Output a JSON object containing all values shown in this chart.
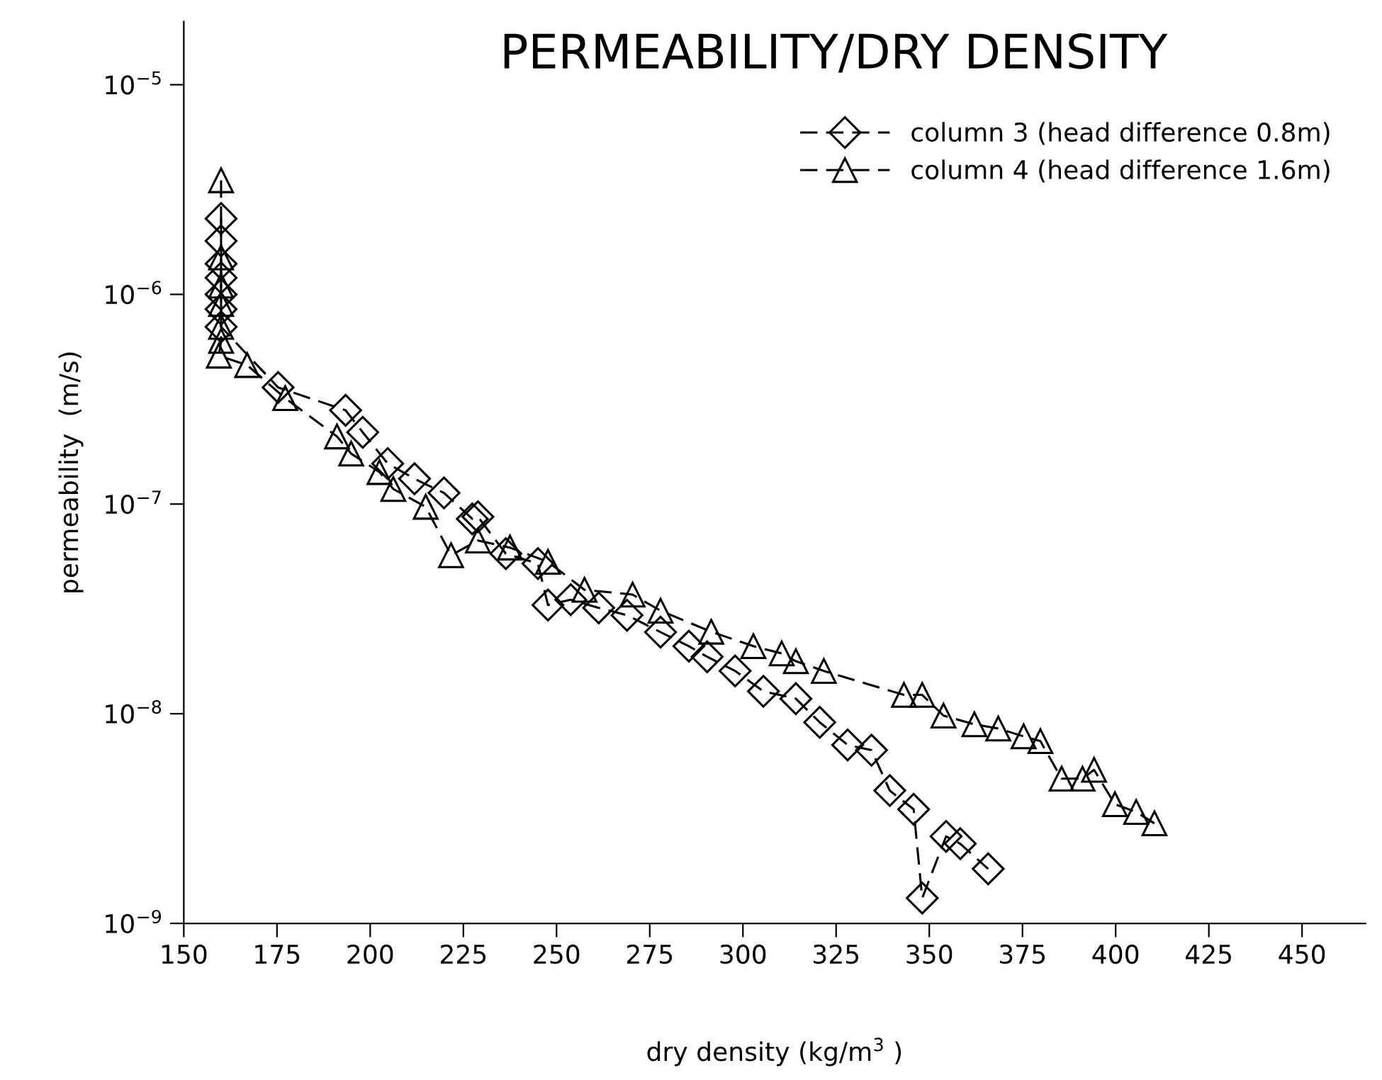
{
  "chart_data": {
    "type": "line",
    "title": "PERMEABILITY/DRY DENSITY",
    "xlabel": "dry density (kg/m$^{3}$ )",
    "ylabel": "permeability  (m/s)",
    "log": "y",
    "legend": "top right",
    "line_style": "dashed",
    "xlim": [
      150,
      467
    ],
    "ylim": [
      1e-09,
      2e-05
    ],
    "xticks": [
      150,
      175,
      200,
      225,
      250,
      275,
      300,
      325,
      350,
      375,
      400,
      425,
      450
    ],
    "yticks": [
      {
        "value": 1e-09,
        "label": "10$^{−9}$"
      },
      {
        "value": 1e-08,
        "label": "10$^{−8}$"
      },
      {
        "value": 1e-07,
        "label": "10$^{−7}$"
      },
      {
        "value": 1e-06,
        "label": "10$^{−6}$"
      },
      {
        "value": 1e-05,
        "label": "10$^{−5}$"
      }
    ],
    "series": [
      {
        "name": "column 3 (head difference 0.8m)",
        "color": "#000000",
        "marker": "diamond",
        "x": [
          160,
          160,
          160,
          160,
          160,
          160,
          160,
          175.3,
          193.4,
          198,
          204.7,
          211.9,
          219.8,
          227.4,
          228.9,
          236.4,
          245,
          247.7,
          253.8,
          261.3,
          268.9,
          277.9,
          285.5,
          290.4,
          297.9,
          305.5,
          314.2,
          320.6,
          328.1,
          334.5,
          339.4,
          345.8,
          348.1,
          354.5,
          358.3,
          365.8
        ],
        "values": [
          2.3e-06,
          1.8e-06,
          1.4e-06,
          1.2e-06,
          1e-06,
          8.5e-07,
          7e-07,
          3.6e-07,
          2.8e-07,
          2.2e-07,
          1.56e-07,
          1.32e-07,
          1.13e-07,
          8.5e-08,
          8.7e-08,
          5.8e-08,
          5.2e-08,
          3.3e-08,
          3.5e-08,
          3.2e-08,
          2.95e-08,
          2.45e-08,
          2.1e-08,
          1.87e-08,
          1.6e-08,
          1.28e-08,
          1.18e-08,
          9.1e-09,
          7.1e-09,
          6.7e-09,
          4.3e-09,
          3.5e-09,
          1.32e-09,
          2.6e-09,
          2.4e-09,
          1.82e-09
        ]
      },
      {
        "name": "column 4 (head difference 1.6m)",
        "color": "#000000",
        "marker": "triangle",
        "x": [
          160,
          160,
          160,
          160,
          160,
          160,
          159.4,
          167,
          177.2,
          191.1,
          194.9,
          202.5,
          206.2,
          214.9,
          221.7,
          228.9,
          237.5,
          247.7,
          257.5,
          270.4,
          277.9,
          291.5,
          302.8,
          310.4,
          314.2,
          321.7,
          343.2,
          348.1,
          353.8,
          362.1,
          368.5,
          375.3,
          379.8,
          385.5,
          391.1,
          394.2,
          399.8,
          405.5,
          410.4
        ],
        "values": [
          3.5e-06,
          1.5e-06,
          1.1e-06,
          9e-07,
          7e-07,
          6e-07,
          5.1e-07,
          4.6e-07,
          3.2e-07,
          2.1e-07,
          1.74e-07,
          1.42e-07,
          1.18e-07,
          9.7e-08,
          5.7e-08,
          6.7e-08,
          6.2e-08,
          5.3e-08,
          3.9e-08,
          3.7e-08,
          3.1e-08,
          2.46e-08,
          2.1e-08,
          1.94e-08,
          1.78e-08,
          1.6e-08,
          1.23e-08,
          1.23e-08,
          9.8e-09,
          8.9e-09,
          8.5e-09,
          7.8e-09,
          7.4e-09,
          4.9e-09,
          4.9e-09,
          5.4e-09,
          3.7e-09,
          3.4e-09,
          3e-09
        ]
      }
    ]
  }
}
